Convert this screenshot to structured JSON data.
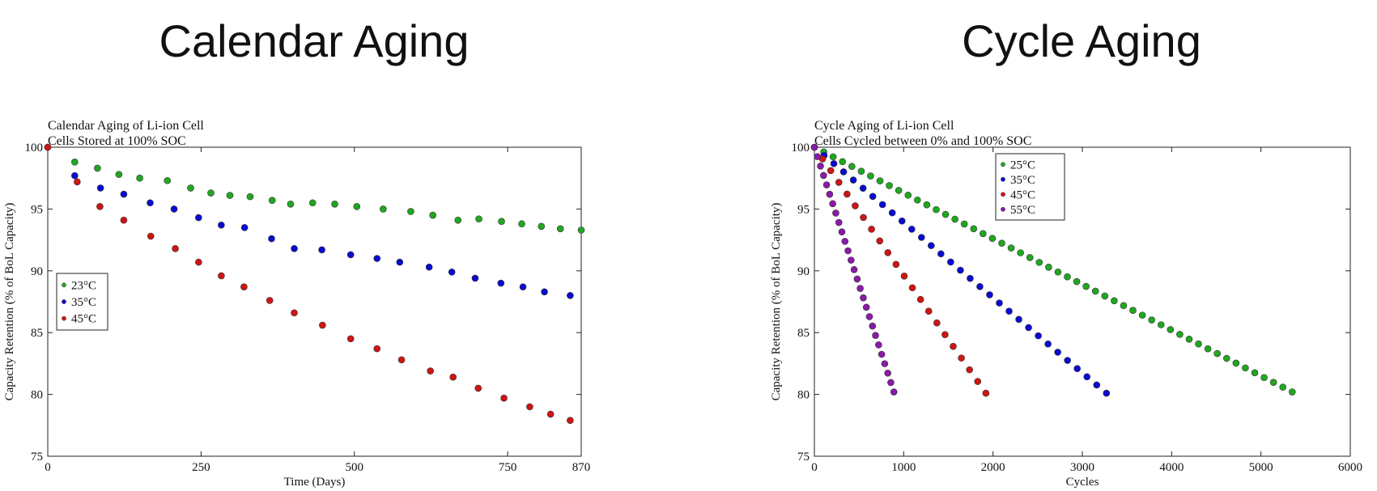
{
  "headings": {
    "left": "Calendar Aging",
    "right": "Cycle Aging"
  },
  "chart_data": [
    {
      "type": "scatter",
      "title": "Calendar Aging of Li-ion Cell",
      "subtitle": "Cells Stored at 100% SOC",
      "xlabel": "Time (Days)",
      "ylabel": "Capacity Retention (% of BoL Capacity)",
      "xlim": [
        0,
        870
      ],
      "ylim": [
        75,
        100
      ],
      "xticks": [
        0,
        250,
        500,
        750,
        870
      ],
      "yticks": [
        75,
        80,
        85,
        90,
        95,
        100
      ],
      "grid": false,
      "legend_position": "middle-left",
      "series": [
        {
          "name": "23°C",
          "color": "#1fa81f",
          "points": [
            [
              0,
              100
            ],
            [
              44,
              98.8
            ],
            [
              81,
              98.3
            ],
            [
              116,
              97.8
            ],
            [
              150,
              97.5
            ],
            [
              195,
              97.3
            ],
            [
              233,
              96.7
            ],
            [
              266,
              96.3
            ],
            [
              297,
              96.1
            ],
            [
              330,
              96.0
            ],
            [
              366,
              95.7
            ],
            [
              396,
              95.4
            ],
            [
              432,
              95.5
            ],
            [
              468,
              95.4
            ],
            [
              504,
              95.2
            ],
            [
              547,
              95.0
            ],
            [
              592,
              94.8
            ],
            [
              628,
              94.5
            ],
            [
              669,
              94.1
            ],
            [
              703,
              94.2
            ],
            [
              740,
              94.0
            ],
            [
              773,
              93.8
            ],
            [
              805,
              93.6
            ],
            [
              836,
              93.4
            ],
            [
              870,
              93.3
            ]
          ]
        },
        {
          "name": "35°C",
          "color": "#0a0ad0",
          "points": [
            [
              0,
              100
            ],
            [
              44,
              97.7
            ],
            [
              86,
              96.7
            ],
            [
              124,
              96.2
            ],
            [
              167,
              95.5
            ],
            [
              206,
              95.0
            ],
            [
              246,
              94.3
            ],
            [
              283,
              93.7
            ],
            [
              321,
              93.5
            ],
            [
              365,
              92.6
            ],
            [
              402,
              91.8
            ],
            [
              447,
              91.7
            ],
            [
              494,
              91.3
            ],
            [
              537,
              91.0
            ],
            [
              574,
              90.7
            ],
            [
              622,
              90.3
            ],
            [
              659,
              89.9
            ],
            [
              697,
              89.4
            ],
            [
              739,
              89.0
            ],
            [
              775,
              88.7
            ],
            [
              810,
              88.3
            ],
            [
              852,
              88.0
            ]
          ]
        },
        {
          "name": "45°C",
          "color": "#d01414",
          "points": [
            [
              0,
              100
            ],
            [
              48,
              97.2
            ],
            [
              85,
              95.2
            ],
            [
              124,
              94.1
            ],
            [
              168,
              92.8
            ],
            [
              208,
              91.8
            ],
            [
              246,
              90.7
            ],
            [
              283,
              89.6
            ],
            [
              320,
              88.7
            ],
            [
              362,
              87.6
            ],
            [
              402,
              86.6
            ],
            [
              448,
              85.6
            ],
            [
              494,
              84.5
            ],
            [
              537,
              83.7
            ],
            [
              577,
              82.8
            ],
            [
              624,
              81.9
            ],
            [
              661,
              81.4
            ],
            [
              702,
              80.5
            ],
            [
              744,
              79.7
            ],
            [
              786,
              79.0
            ],
            [
              820,
              78.4
            ],
            [
              852,
              77.9
            ]
          ]
        }
      ]
    },
    {
      "type": "scatter",
      "title": "Cycle Aging of Li-ion Cell",
      "subtitle": "Cells Cycled between 0% and 100% SOC",
      "xlabel": "Cycles",
      "ylabel": "Capacity Retention (% of BoL Capacity)",
      "xlim": [
        0,
        6000
      ],
      "ylim": [
        75,
        100
      ],
      "xticks": [
        0,
        1000,
        2000,
        3000,
        4000,
        5000,
        6000
      ],
      "yticks": [
        75,
        80,
        85,
        90,
        95,
        100
      ],
      "grid": false,
      "legend_position": "top-left",
      "series": [
        {
          "name": "25°C",
          "color": "#1fa81f",
          "start": [
            0,
            100
          ],
          "end": [
            5350,
            80.2
          ],
          "n": 52
        },
        {
          "name": "35°C",
          "color": "#0a0ad0",
          "start": [
            0,
            100
          ],
          "end": [
            3270,
            80.1
          ],
          "n": 31
        },
        {
          "name": "45°C",
          "color": "#d01414",
          "start": [
            0,
            100
          ],
          "end": [
            1920,
            80.1
          ],
          "n": 22
        },
        {
          "name": "55°C",
          "color": "#8a1aa8",
          "start": [
            0,
            100
          ],
          "end": [
            890,
            80.2
          ],
          "n": 27
        }
      ]
    }
  ]
}
